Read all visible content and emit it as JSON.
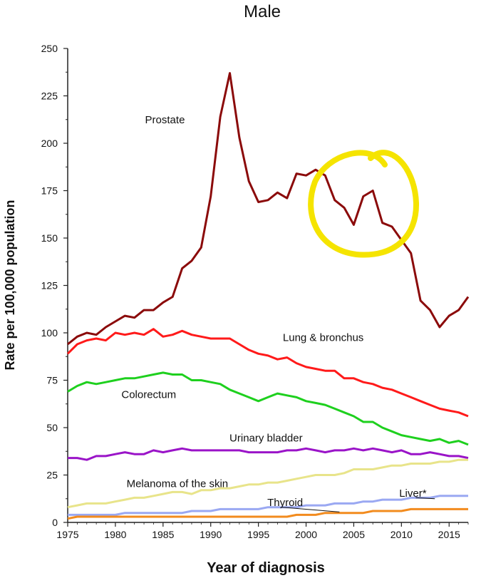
{
  "chart_data": {
    "type": "line",
    "title": "Male",
    "xlabel": "Year of diagnosis",
    "ylabel": "Rate per 100,000 population",
    "xlim": [
      1975,
      2017
    ],
    "ylim": [
      0,
      250
    ],
    "xticks": [
      1975,
      1980,
      1985,
      1990,
      1995,
      2000,
      2005,
      2010,
      2015
    ],
    "yticks": [
      0,
      25,
      50,
      75,
      100,
      125,
      150,
      175,
      200,
      225,
      250
    ],
    "x": [
      1975,
      1976,
      1977,
      1978,
      1979,
      1980,
      1981,
      1982,
      1983,
      1984,
      1985,
      1986,
      1987,
      1988,
      1989,
      1990,
      1991,
      1992,
      1993,
      1994,
      1995,
      1996,
      1997,
      1998,
      1999,
      2000,
      2001,
      2002,
      2003,
      2004,
      2005,
      2006,
      2007,
      2008,
      2009,
      2010,
      2011,
      2012,
      2013,
      2014,
      2015,
      2016,
      2017
    ],
    "series": [
      {
        "name": "Prostate",
        "color": "#8b0a0a",
        "values": [
          94,
          98,
          100,
          99,
          103,
          106,
          109,
          108,
          112,
          112,
          116,
          119,
          134,
          138,
          145,
          172,
          214,
          237,
          203,
          180,
          169,
          170,
          174,
          171,
          184,
          183,
          186,
          183,
          170,
          166,
          157,
          172,
          175,
          158,
          156,
          149,
          142,
          117,
          112,
          103,
          109,
          112,
          119
        ]
      },
      {
        "name": "Lung & bronchus",
        "color": "#ff1a1a",
        "values": [
          89,
          94,
          96,
          97,
          96,
          100,
          99,
          100,
          99,
          102,
          98,
          99,
          101,
          99,
          98,
          97,
          97,
          97,
          94,
          91,
          89,
          88,
          86,
          87,
          84,
          82,
          81,
          80,
          80,
          76,
          76,
          74,
          73,
          71,
          70,
          68,
          66,
          64,
          62,
          60,
          59,
          58,
          56
        ]
      },
      {
        "name": "Colorectum",
        "color": "#1ed01e",
        "values": [
          69,
          72,
          74,
          73,
          74,
          75,
          76,
          76,
          77,
          78,
          79,
          78,
          78,
          75,
          75,
          74,
          73,
          70,
          68,
          66,
          64,
          66,
          68,
          67,
          66,
          64,
          63,
          62,
          60,
          58,
          56,
          53,
          53,
          50,
          48,
          46,
          45,
          44,
          43,
          44,
          42,
          43,
          41
        ]
      },
      {
        "name": "Urinary bladder",
        "color": "#9a14c8",
        "values": [
          34,
          34,
          33,
          35,
          35,
          36,
          37,
          36,
          36,
          38,
          37,
          38,
          39,
          38,
          38,
          38,
          38,
          38,
          38,
          37,
          37,
          37,
          37,
          38,
          38,
          39,
          38,
          37,
          38,
          38,
          39,
          38,
          39,
          38,
          37,
          38,
          36,
          36,
          37,
          36,
          35,
          35,
          34
        ]
      },
      {
        "name": "Melanoma of the skin",
        "color": "#e8e48a",
        "values": [
          8,
          9,
          10,
          10,
          10,
          11,
          12,
          13,
          13,
          14,
          15,
          16,
          16,
          15,
          17,
          17,
          18,
          18,
          19,
          20,
          20,
          21,
          21,
          22,
          23,
          24,
          25,
          25,
          25,
          26,
          28,
          28,
          28,
          29,
          30,
          30,
          31,
          31,
          31,
          32,
          32,
          33,
          33
        ]
      },
      {
        "name": "Liver*",
        "color": "#9aa8f2",
        "values": [
          4,
          4,
          4,
          4,
          4,
          4,
          5,
          5,
          5,
          5,
          5,
          5,
          5,
          6,
          6,
          6,
          7,
          7,
          7,
          7,
          7,
          8,
          8,
          8,
          8,
          9,
          9,
          9,
          10,
          10,
          10,
          11,
          11,
          12,
          12,
          12,
          13,
          13,
          13,
          14,
          14,
          14,
          14
        ]
      },
      {
        "name": "Thyroid",
        "color": "#f28b1e",
        "values": [
          2,
          3,
          3,
          3,
          3,
          3,
          3,
          3,
          3,
          3,
          3,
          3,
          3,
          3,
          3,
          3,
          3,
          3,
          3,
          3,
          3,
          3,
          3,
          3,
          4,
          4,
          4,
          5,
          5,
          5,
          5,
          5,
          6,
          6,
          6,
          6,
          7,
          7,
          7,
          7,
          7,
          7,
          7
        ]
      }
    ],
    "annotations": [
      {
        "text": "Prostate",
        "x": 1985.2,
        "y": 212.5
      },
      {
        "text": "Lung & bronchus",
        "x": 2001.8,
        "y": 97.5
      },
      {
        "text": "Colorectum",
        "x": 1983.5,
        "y": 67.5
      },
      {
        "text": "Urinary bladder",
        "x": 1995.8,
        "y": 44.5
      },
      {
        "text": "Melanoma of the skin",
        "x": 1986.5,
        "y": 20.5
      },
      {
        "text": "Thyroid",
        "x": 1997.8,
        "y": 10.5
      },
      {
        "text": "Liver*",
        "x": 2011.2,
        "y": 15.5
      }
    ],
    "highlight_circle_color": "#f5e400",
    "grid": false,
    "legend": "none"
  }
}
